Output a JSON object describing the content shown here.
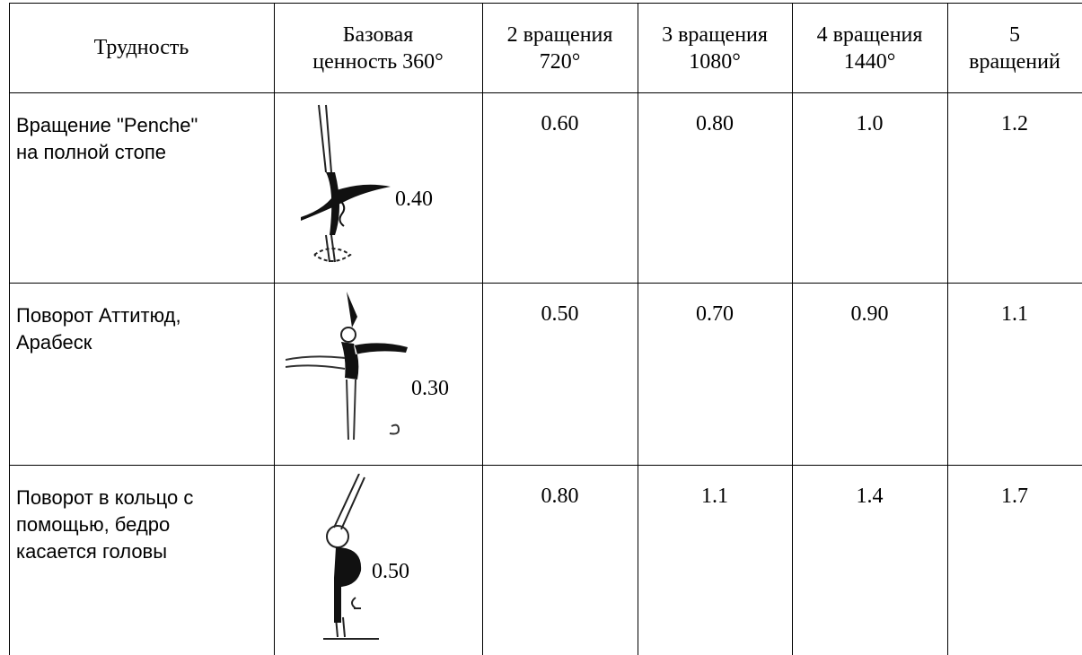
{
  "table": {
    "header": [
      [
        "Трудность"
      ],
      [
        "Базовая",
        "ценность 360°"
      ],
      [
        "2 вращения",
        "720°"
      ],
      [
        "3 вращения",
        "1080°"
      ],
      [
        "4 вращения",
        "1440°"
      ],
      [
        "5",
        "вращений"
      ]
    ],
    "rows": [
      {
        "label": [
          "Вращение \"Penche\"",
          "на полной стопе"
        ],
        "base": "0.40",
        "values": [
          "0.60",
          "0.80",
          "1.0",
          "1.2"
        ]
      },
      {
        "label": [
          "Поворот Аттитюд,",
          "Арабеск"
        ],
        "base": "0.30",
        "values": [
          "0.50",
          "0.70",
          "0.90",
          "1.1"
        ]
      },
      {
        "label": [
          "Поворот в кольцо с",
          "помощью, бедро",
          "касается головы"
        ],
        "base": "0.50",
        "values": [
          "0.80",
          "1.1",
          "1.4",
          "1.7"
        ]
      }
    ]
  }
}
